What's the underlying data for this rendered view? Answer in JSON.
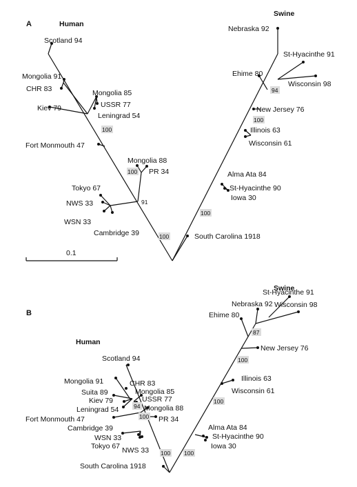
{
  "panel_a": {
    "label": "A",
    "human_heading": "Human",
    "swine_heading": "Swine",
    "scale_value": "0.1",
    "taxa": {
      "scotland": "Scotland 94",
      "mongolia91": "Mongolia 91",
      "chr83": "CHR 83",
      "kiev79": "Kiev 79",
      "mongolia85": "Mongolia 85",
      "ussr77": "USSR 77",
      "leningrad54": "Leningrad 54",
      "fortmonmouth": "Fort Monmouth 47",
      "mongolia88": "Mongolia 88",
      "pr34": "PR 34",
      "tokyo67": "Tokyo 67",
      "nws33": "NWS 33",
      "wsn33": "WSN 33",
      "cambridge39": "Cambridge 39",
      "southcarolina": "South Carolina 1918",
      "nebraska92": "Nebraska 92",
      "sthyacinthe91": "St-Hyacinthe 91",
      "ehime80": "Ehime 80",
      "wisconsin98": "Wisconsin 98",
      "newjersey76": "New Jersey 76",
      "illinois63": "Illinois 63",
      "wisconsin61": "Wisconsin 61",
      "almaata84": "Alma Ata 84",
      "sthyacinthe90": "St-Hyacinthe 90",
      "iowa30": "Iowa 30"
    },
    "bootstrap": {
      "b_swine_top": "94",
      "b_swine_mid": "100",
      "b_swine_low": "100",
      "b_human_upper": "100",
      "b_human_pr": "100",
      "b_human_91": "91",
      "b_human_base": "100"
    }
  },
  "panel_b": {
    "label": "B",
    "human_heading": "Human",
    "swine_heading": "Swine",
    "taxa": {
      "nebraska92": "Nebraska 92",
      "sthyacinthe91": "St-Hyacinthe 91",
      "wisconsin98": "Wisconsin 98",
      "ehime80": "Ehime 80",
      "newjersey76": "New Jersey 76",
      "illinois63": "Illinois 63",
      "wisconsin61": "Wisconsin 61",
      "almaata84": "Alma Ata 84",
      "sthyacinthe90": "St-Hyacinthe 90",
      "iowa30": "Iowa 30",
      "scotland": "Scotland 94",
      "mongolia91": "Mongolia 91",
      "chr83": "CHR 83",
      "suita89": "Suita 89",
      "mongolia85": "Mongolia 85",
      "kiev79": "Kiev 79",
      "ussr77": "USSR 77",
      "leningrad54": "Leningrad 54",
      "mongolia88": "Mongolia 88",
      "fortmonmouth": "Fort Monmouth 47",
      "pr34": "PR 34",
      "cambridge39": "Cambridge 39",
      "wsn33": "WSN 33",
      "tokyo67": "Tokyo 67",
      "nws33": "NWS 33",
      "southcarolina": "South Carolina 1918"
    },
    "bootstrap": {
      "b_swine_top": "87",
      "b_swine_mid": "100",
      "b_swine_low": "100",
      "b_human_94": "94",
      "b_human_pr": "100",
      "b_human_base": "100"
    }
  }
}
